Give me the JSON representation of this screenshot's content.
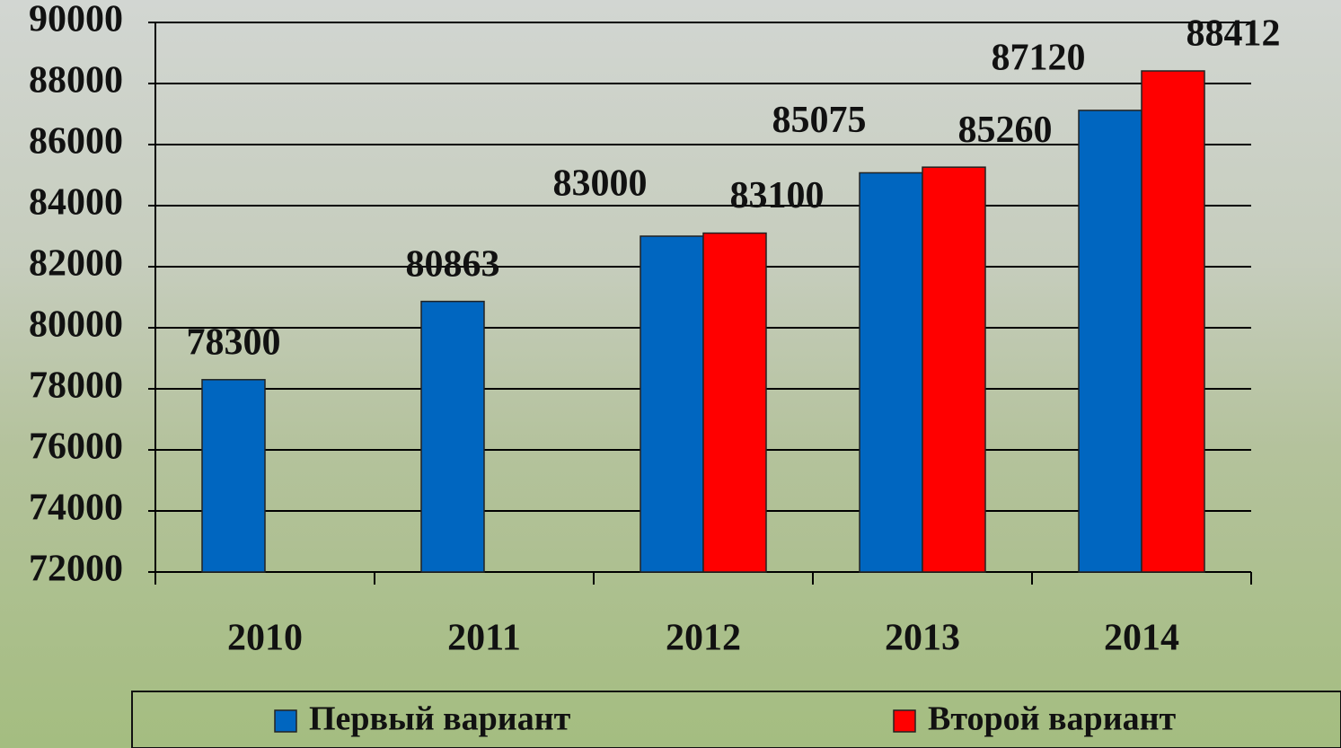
{
  "chart_data": {
    "type": "bar",
    "categories": [
      "2010",
      "2011",
      "2012",
      "2013",
      "2014"
    ],
    "series": [
      {
        "name": "Первый вариант",
        "color": "#0066c0",
        "values": [
          78300,
          80863,
          83000,
          85075,
          87120
        ]
      },
      {
        "name": "Второй вариант",
        "color": "#ff0000",
        "values": [
          null,
          null,
          83100,
          85260,
          88412
        ]
      }
    ],
    "ylim": [
      72000,
      90000
    ],
    "yticks": [
      72000,
      74000,
      76000,
      78000,
      80000,
      82000,
      84000,
      86000,
      88000,
      90000
    ],
    "grid": true,
    "legend": "bottom"
  }
}
